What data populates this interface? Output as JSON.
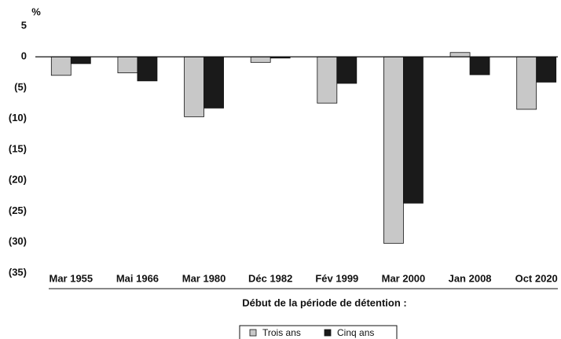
{
  "chart_data": {
    "type": "bar",
    "y_unit": "%",
    "x_label": "Début de la période de détention :",
    "categories": [
      "Mar 1955",
      "Mai 1966",
      "Mar 1980",
      "Déc 1982",
      "Fév 1999",
      "Mar 2000",
      "Jan 2008",
      "Oct 2020"
    ],
    "series": [
      {
        "name": "Trois ans",
        "color": "#c8c8c8",
        "values": [
          -3.0,
          -2.6,
          -9.7,
          -0.9,
          -7.5,
          -30.2,
          0.7,
          -8.5
        ]
      },
      {
        "name": "Cinq ans",
        "color": "#1a1a1a",
        "values": [
          -1.1,
          -3.9,
          -8.3,
          -0.2,
          -4.3,
          -23.7,
          -2.9,
          -4.1
        ]
      }
    ],
    "ylim": [
      -35,
      5
    ],
    "yticks": [
      5,
      0,
      {
        "value": -5,
        "label": "(5)"
      },
      {
        "value": -10,
        "label": "(10)"
      },
      {
        "value": -15,
        "label": "(15)"
      },
      {
        "value": -20,
        "label": "(20)"
      },
      {
        "value": -25,
        "label": "(25)"
      },
      {
        "value": -30,
        "label": "(30)"
      },
      {
        "value": -35,
        "label": "(35)"
      }
    ],
    "grid": false,
    "legend": "bottom"
  }
}
